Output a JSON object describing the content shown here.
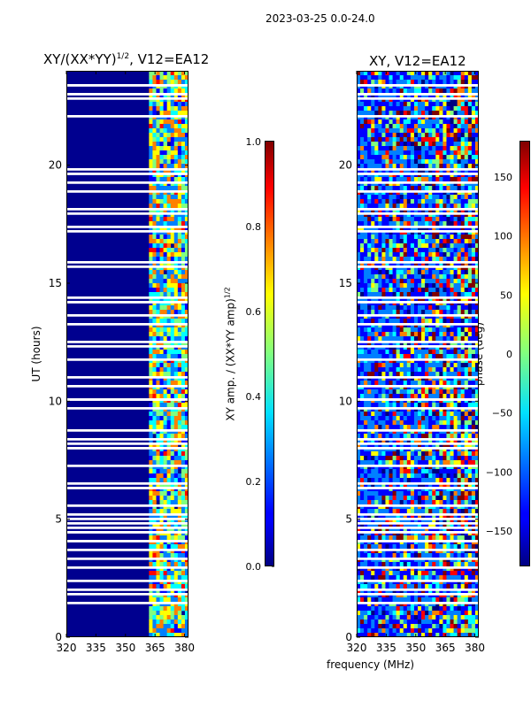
{
  "suptitle": "2023-03-25 0.0-24.0",
  "colors": {
    "background": "#00008f",
    "jet": [
      "#000080",
      "#0000ff",
      "#0080ff",
      "#00ffff",
      "#80ff80",
      "#ffff00",
      "#ff8000",
      "#ff0000",
      "#800000"
    ]
  },
  "chart_data": [
    {
      "type": "heatmap",
      "title_prefix": "XY/(XX*YY)",
      "title_exp": "1/2",
      "title_suffix": ", V12=EA12",
      "xlabel": "",
      "ylabel": "UT (hours)",
      "xlim": [
        320,
        382
      ],
      "ylim": [
        0,
        24
      ],
      "xticks": [
        "320",
        "335",
        "350",
        "365",
        "380"
      ],
      "yticks": [
        "0",
        "5",
        "10",
        "15",
        "20"
      ],
      "colorbar": {
        "label": "XY amp. / (XX*YY amp)",
        "label_exp": "1/2",
        "range": [
          0.0,
          1.0
        ],
        "ticks": [
          "0.0",
          "0.2",
          "0.4",
          "0.6",
          "0.8",
          "1.0"
        ]
      }
    },
    {
      "type": "heatmap",
      "title": "XY, V12=EA12",
      "xlabel": "frequency (MHz)",
      "ylabel": "",
      "xlim": [
        320,
        382
      ],
      "ylim": [
        0,
        24
      ],
      "xticks": [
        "320",
        "335",
        "350",
        "365",
        "380"
      ],
      "yticks": [
        "0",
        "5",
        "10",
        "15",
        "20"
      ],
      "colorbar": {
        "label": "phase (deg)",
        "range": [
          -180,
          180
        ],
        "ticks": [
          "−150",
          "−100",
          "−50",
          "0",
          "50",
          "100",
          "150"
        ]
      }
    }
  ]
}
